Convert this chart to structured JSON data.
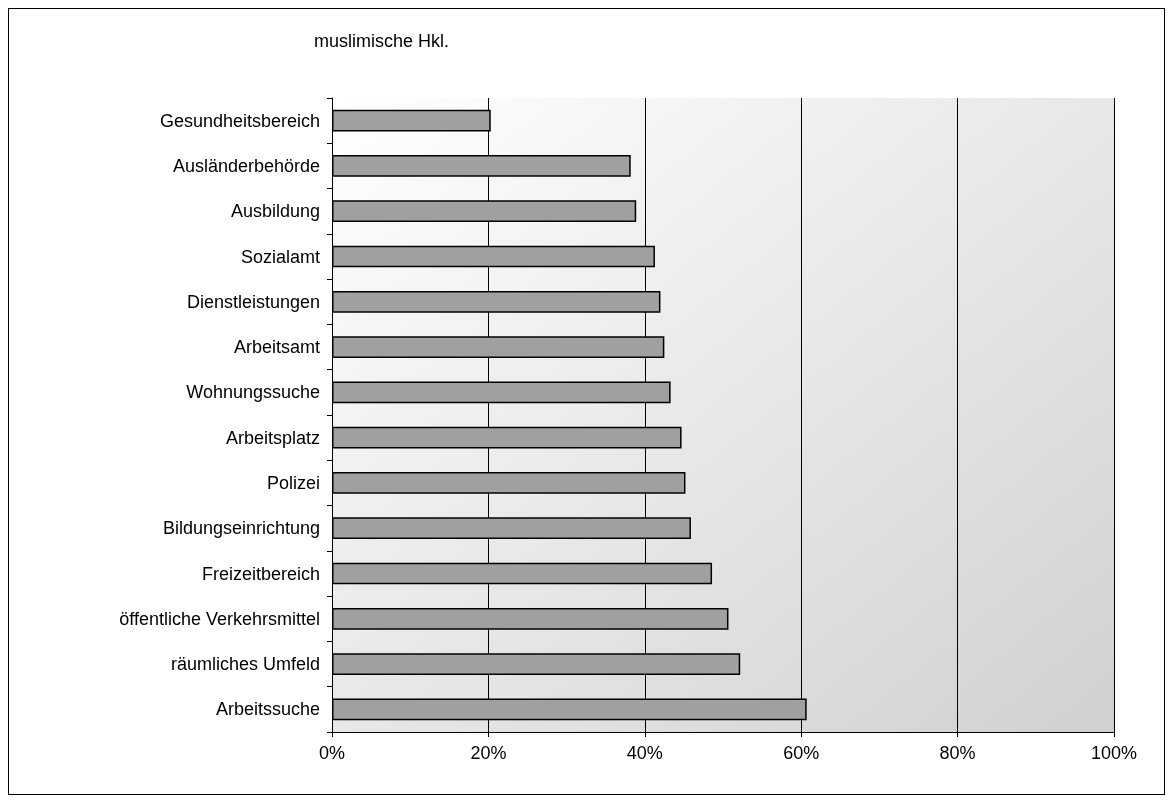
{
  "chart_data": {
    "type": "bar",
    "orientation": "horizontal",
    "title": "muslimische Hkl.",
    "categories": [
      "Gesundheitsbereich",
      "Ausländerbehörde",
      "Ausbildung",
      "Sozialamt",
      "Dienstleistungen",
      "Arbeitsamt",
      "Wohnungssuche",
      "Arbeitsplatz",
      "Polizei",
      "Bildungseinrichtung",
      "Freizeitbereich",
      "öffentliche Verkehrsmittel",
      "räumliches Umfeld",
      "Arbeitssuche"
    ],
    "values": [
      20.3,
      38.2,
      38.9,
      41.3,
      42.0,
      42.5,
      43.3,
      44.7,
      45.2,
      45.9,
      48.6,
      50.7,
      52.2,
      60.7
    ],
    "color": "#a0a0a0",
    "xlim": [
      0,
      100
    ],
    "xticks": [
      {
        "value": 0,
        "label": "0%"
      },
      {
        "value": 20,
        "label": "20%"
      },
      {
        "value": 40,
        "label": "40%"
      },
      {
        "value": 60,
        "label": "60%"
      },
      {
        "value": 80,
        "label": "80%"
      },
      {
        "value": 100,
        "label": "100%"
      }
    ],
    "grid": "x"
  }
}
